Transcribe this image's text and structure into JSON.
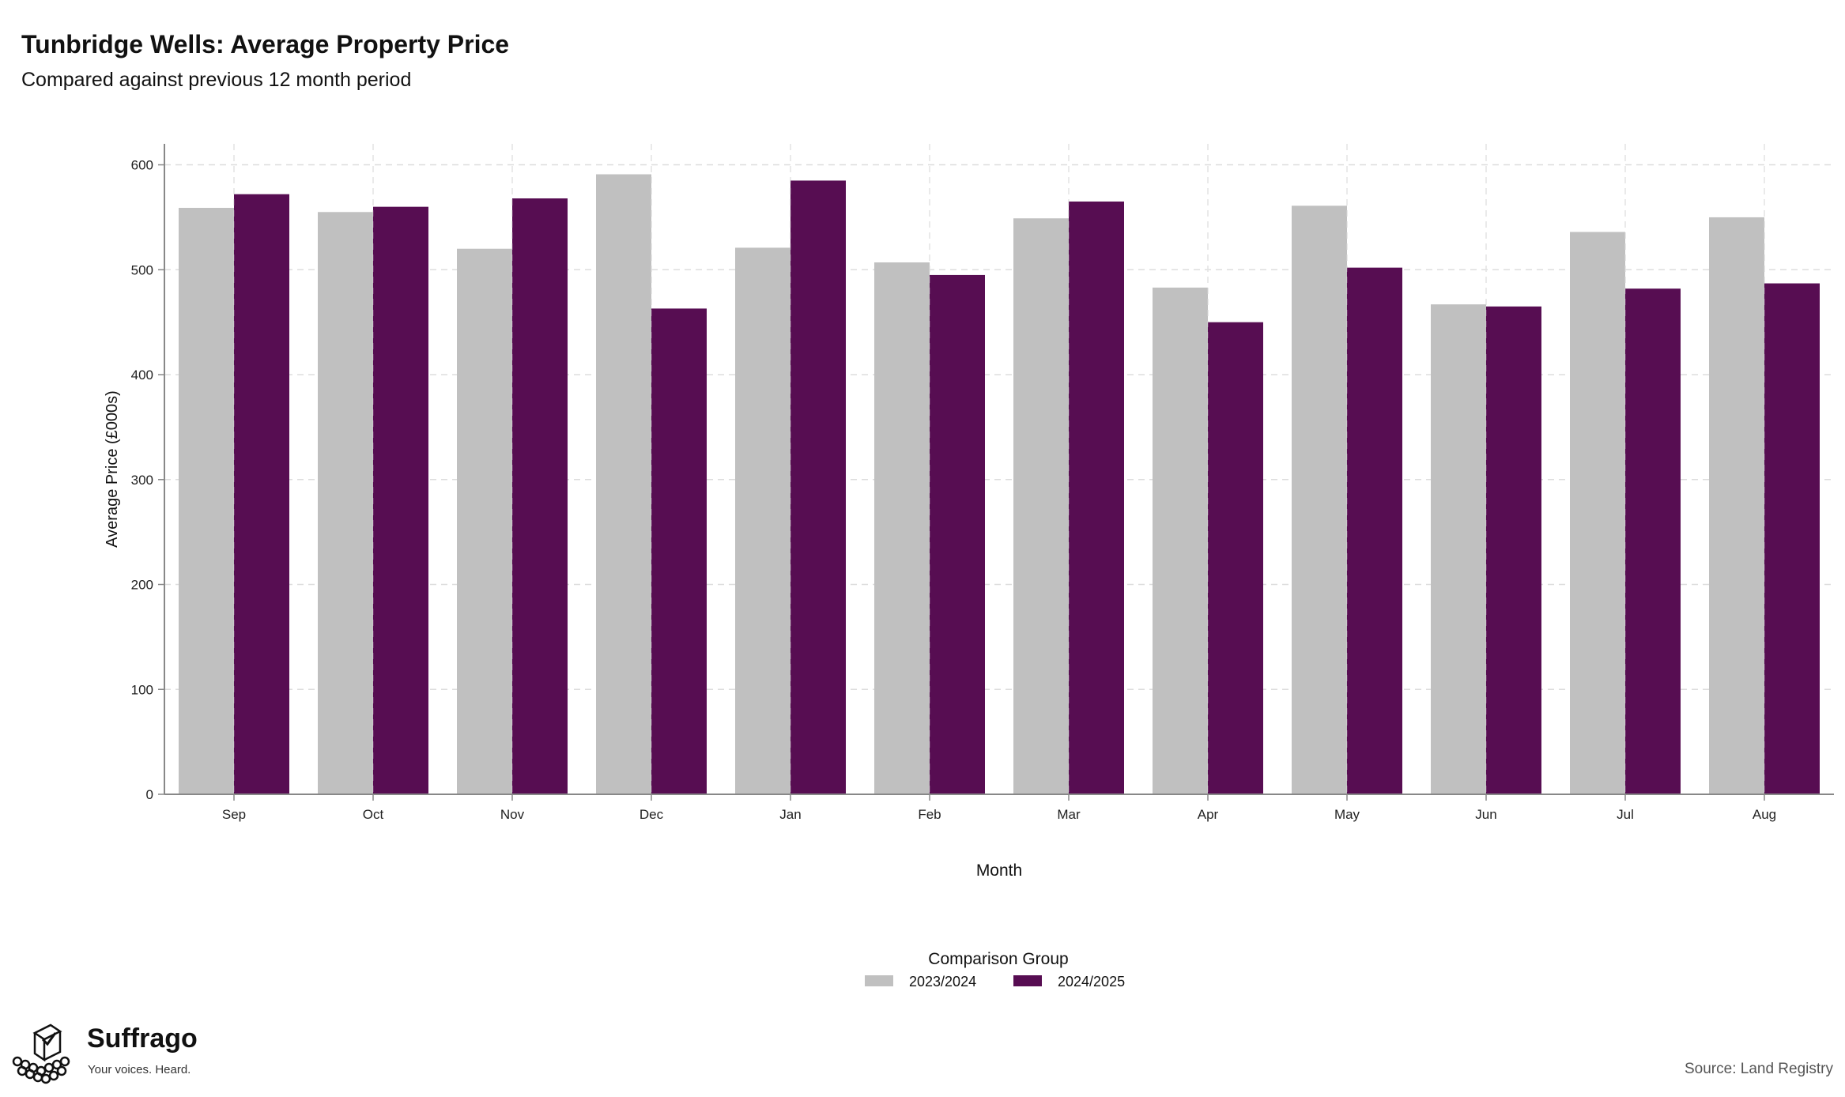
{
  "page": {
    "title": "Tunbridge Wells: Average Property Price",
    "subtitle": "Compared against previous 12 month period",
    "source": "Source: Land Registry"
  },
  "branding": {
    "name": "Suffrago",
    "tagline": "Your voices. Heard.",
    "icon": "ballot-box-crowd-icon"
  },
  "colors": {
    "series_a": "#c0c0c0",
    "series_b": "#570d52",
    "grid": "#dddddd",
    "axis": "#888888"
  },
  "chart_data": {
    "type": "bar",
    "title": "Tunbridge Wells: Average Property Price",
    "subtitle": "Compared against previous 12 month period",
    "xlabel": "Month",
    "ylabel": "Average Price (£000s)",
    "ylim": [
      0,
      620
    ],
    "yticks": [
      0,
      100,
      200,
      300,
      400,
      500,
      600
    ],
    "grid": true,
    "legend": {
      "title": "Comparison Group",
      "placement": "bottom-center"
    },
    "categories": [
      "Sep",
      "Oct",
      "Nov",
      "Dec",
      "Jan",
      "Feb",
      "Mar",
      "Apr",
      "May",
      "Jun",
      "Jul",
      "Aug"
    ],
    "series": [
      {
        "name": "2023/2024",
        "values": [
          559,
          555,
          520,
          591,
          521,
          507,
          549,
          483,
          561,
          467,
          536,
          550
        ]
      },
      {
        "name": "2024/2025",
        "values": [
          572,
          560,
          568,
          463,
          585,
          495,
          565,
          450,
          502,
          465,
          482,
          487
        ]
      }
    ]
  }
}
